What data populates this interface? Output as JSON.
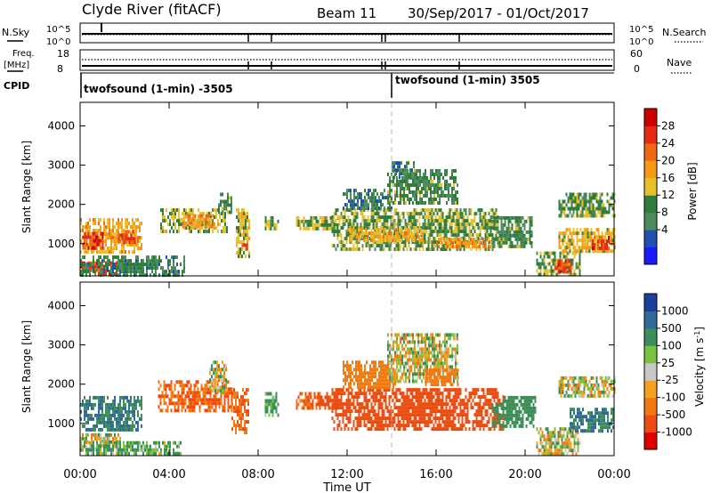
{
  "header": {
    "station": "Clyde River (fitACF)",
    "beam": "Beam 11",
    "date_range": "30/Sep/2017 - 01/Oct/2017"
  },
  "noise_panel": {
    "left_label": "N.Sky",
    "left_ticks": [
      "10^5",
      "10^0"
    ],
    "right_label": "N.Search",
    "right_ticks": [
      "10^5",
      "10^0"
    ]
  },
  "freq_panel": {
    "left_label_line1": "Freq.",
    "left_label_line2": "[MHz]",
    "left_ticks": [
      "18",
      "8"
    ],
    "right_label": "Nave",
    "right_ticks": [
      "60",
      "0"
    ]
  },
  "cpid_panel": {
    "label": "CPID",
    "segments": [
      {
        "start_hour": 0,
        "end_hour": 14,
        "text": "twofsound (1-min) -3505"
      },
      {
        "start_hour": 14,
        "end_hour": 24,
        "text": "twofsound (1-min) 3505"
      }
    ]
  },
  "time_axis": {
    "label": "Time UT",
    "ticks": [
      "00:00",
      "04:00",
      "08:00",
      "12:00",
      "16:00",
      "20:00",
      "00:00"
    ],
    "tick_hours": [
      0,
      4,
      8,
      12,
      16,
      20,
      24
    ],
    "range_hours": [
      0,
      24
    ]
  },
  "legend_power": {
    "label": "Power [dB]",
    "ticks": [
      "28",
      "24",
      "20",
      "16",
      "12",
      "8",
      "4"
    ],
    "colors": [
      "#1a1aff",
      "#1f4fb0",
      "#4d8a5e",
      "#2e7d3a",
      "#e8c02a",
      "#f39a1a",
      "#ee6a12",
      "#e52b14",
      "#cc0000"
    ]
  },
  "legend_velocity": {
    "label": "Velocity [m s^-1]",
    "ticks": [
      "1000",
      "500",
      "100",
      "25",
      "-25",
      "-100",
      "-500",
      "-1000"
    ],
    "colors": [
      "#1c3f9c",
      "#2f6a9a",
      "#3c8f58",
      "#7cc242",
      "#c8c8c8",
      "#f2a21c",
      "#f07a14",
      "#ec4d10",
      "#e00000"
    ]
  },
  "chart_data": [
    {
      "type": "heatmap",
      "title": "Power",
      "xlabel": "Time UT",
      "ylabel": "Slant Range [km]",
      "xlim_hours": [
        0,
        24
      ],
      "ylim": [
        180,
        4600
      ],
      "yticks": [
        1000,
        2000,
        3000,
        4000
      ],
      "colorbar_label": "Power [dB]",
      "colorbar_ticks": [
        4,
        8,
        12,
        16,
        20,
        24,
        28
      ],
      "patches": [
        {
          "t0": 0.0,
          "t1": 2.8,
          "r0": 750,
          "r1": 1650,
          "value": 18
        },
        {
          "t0": 0.1,
          "t1": 1.0,
          "r0": 900,
          "r1": 1300,
          "value": 26
        },
        {
          "t0": 1.7,
          "t1": 2.5,
          "r0": 1050,
          "r1": 1350,
          "value": 24
        },
        {
          "t0": 0.0,
          "t1": 1.8,
          "r0": 200,
          "r1": 550,
          "value": 26
        },
        {
          "t0": 0.0,
          "t1": 4.7,
          "r0": 200,
          "r1": 700,
          "value": 10
        },
        {
          "t0": 3.6,
          "t1": 6.6,
          "r0": 1300,
          "r1": 1900,
          "value": 14
        },
        {
          "t0": 4.5,
          "t1": 6.0,
          "r0": 1450,
          "r1": 1750,
          "value": 20
        },
        {
          "t0": 6.2,
          "t1": 6.8,
          "r0": 1800,
          "r1": 2300,
          "value": 11
        },
        {
          "t0": 7.0,
          "t1": 7.6,
          "r0": 700,
          "r1": 1900,
          "value": 16
        },
        {
          "t0": 7.3,
          "t1": 7.5,
          "r0": 800,
          "r1": 1100,
          "value": 26
        },
        {
          "t0": 8.3,
          "t1": 8.9,
          "r0": 1350,
          "r1": 1700,
          "value": 12
        },
        {
          "t0": 9.7,
          "t1": 11.6,
          "r0": 1400,
          "r1": 1700,
          "value": 14
        },
        {
          "t0": 11.3,
          "t1": 18.8,
          "r0": 850,
          "r1": 1900,
          "value": 13
        },
        {
          "t0": 12.0,
          "t1": 15.5,
          "r0": 1100,
          "r1": 1400,
          "value": 18
        },
        {
          "t0": 16.0,
          "t1": 18.5,
          "r0": 950,
          "r1": 1150,
          "value": 20
        },
        {
          "t0": 11.8,
          "t1": 14.0,
          "r0": 1900,
          "r1": 2400,
          "value": 9
        },
        {
          "t0": 13.8,
          "t1": 17.0,
          "r0": 2000,
          "r1": 2900,
          "value": 11
        },
        {
          "t0": 14.0,
          "t1": 15.0,
          "r0": 2700,
          "r1": 3100,
          "value": 9
        },
        {
          "t0": 18.5,
          "t1": 20.3,
          "r0": 900,
          "r1": 1700,
          "value": 11
        },
        {
          "t0": 20.5,
          "t1": 22.5,
          "r0": 250,
          "r1": 800,
          "value": 13
        },
        {
          "t0": 21.3,
          "t1": 22.1,
          "r0": 300,
          "r1": 600,
          "value": 25
        },
        {
          "t0": 21.5,
          "t1": 24.0,
          "r0": 800,
          "r1": 1400,
          "value": 17
        },
        {
          "t0": 23.0,
          "t1": 23.8,
          "r0": 900,
          "r1": 1200,
          "value": 25
        },
        {
          "t0": 21.5,
          "t1": 24.0,
          "r0": 1700,
          "r1": 2300,
          "value": 12
        }
      ]
    },
    {
      "type": "heatmap",
      "title": "Velocity",
      "xlabel": "Time UT",
      "ylabel": "Slant Range [km]",
      "xlim_hours": [
        0,
        24
      ],
      "ylim": [
        180,
        4600
      ],
      "yticks": [
        1000,
        2000,
        3000,
        4000
      ],
      "colorbar_label": "Velocity [m s^-1]",
      "colorbar_ticks": [
        1000,
        500,
        100,
        25,
        -25,
        -100,
        -500,
        -1000
      ],
      "patches": [
        {
          "t0": 0.0,
          "t1": 2.8,
          "r0": 800,
          "r1": 1700,
          "value": 300
        },
        {
          "t0": 0.0,
          "t1": 1.8,
          "r0": 300,
          "r1": 750,
          "value": 0
        },
        {
          "t0": 0.0,
          "t1": 4.5,
          "r0": 200,
          "r1": 550,
          "value": 80
        },
        {
          "t0": 3.5,
          "t1": 6.8,
          "r0": 1300,
          "r1": 2100,
          "value": -300
        },
        {
          "t0": 5.8,
          "t1": 6.6,
          "r0": 1800,
          "r1": 2600,
          "value": 0
        },
        {
          "t0": 6.8,
          "t1": 7.6,
          "r0": 800,
          "r1": 1900,
          "value": -300
        },
        {
          "t0": 8.3,
          "t1": 8.9,
          "r0": 1200,
          "r1": 1800,
          "value": 100
        },
        {
          "t0": 9.7,
          "t1": 11.6,
          "r0": 1350,
          "r1": 1800,
          "value": -350
        },
        {
          "t0": 11.3,
          "t1": 19.0,
          "r0": 850,
          "r1": 1900,
          "value": -400
        },
        {
          "t0": 11.8,
          "t1": 14.2,
          "r0": 1900,
          "r1": 2600,
          "value": -200
        },
        {
          "t0": 13.8,
          "t1": 17.0,
          "r0": 2100,
          "r1": 3300,
          "value": 0
        },
        {
          "t0": 15.5,
          "t1": 17.0,
          "r0": 2000,
          "r1": 2400,
          "value": -200
        },
        {
          "t0": 18.5,
          "t1": 20.5,
          "r0": 900,
          "r1": 1700,
          "value": 200
        },
        {
          "t0": 20.5,
          "t1": 22.5,
          "r0": 200,
          "r1": 900,
          "value": 0
        },
        {
          "t0": 22.0,
          "t1": 24.0,
          "r0": 800,
          "r1": 1400,
          "value": 300
        },
        {
          "t0": 21.5,
          "t1": 24.0,
          "r0": 1700,
          "r1": 2200,
          "value": 0
        }
      ]
    }
  ]
}
